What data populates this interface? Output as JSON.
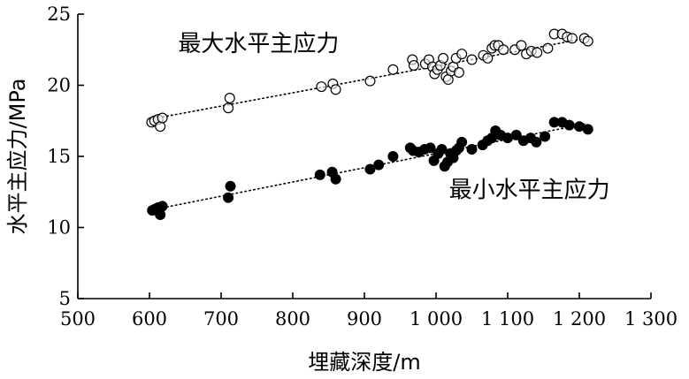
{
  "chart_data": {
    "type": "scatter",
    "title": "",
    "xlabel": "埋藏深度/m",
    "ylabel": "水平主应力/MPa",
    "xlim": [
      500,
      1300
    ],
    "ylim": [
      5,
      25
    ],
    "x_ticks": [
      500,
      600,
      700,
      800,
      900,
      1000,
      1100,
      1200,
      1300
    ],
    "x_tick_labels": [
      "500",
      "600",
      "700",
      "800",
      "900",
      "1 000",
      "1 100",
      "1 200",
      "1 300"
    ],
    "y_ticks": [
      5,
      10,
      15,
      20,
      25
    ],
    "y_tick_labels": [
      "5",
      "10",
      "15",
      "20",
      "25"
    ],
    "grid": false,
    "series": [
      {
        "name": "最大水平主应力",
        "marker": "open-circle",
        "color": "#000000",
        "trend": {
          "x": [
            600,
            1210
          ],
          "y": [
            17.6,
            23.3
          ]
        },
        "points": [
          [
            603,
            17.4
          ],
          [
            607,
            17.5
          ],
          [
            612,
            17.6
          ],
          [
            615,
            17.1
          ],
          [
            618,
            17.7
          ],
          [
            710,
            18.4
          ],
          [
            712,
            19.1
          ],
          [
            840,
            19.9
          ],
          [
            856,
            20.1
          ],
          [
            860,
            19.7
          ],
          [
            908,
            20.3
          ],
          [
            940,
            21.1
          ],
          [
            967,
            21.8
          ],
          [
            969,
            21.4
          ],
          [
            985,
            21.5
          ],
          [
            990,
            21.8
          ],
          [
            995,
            21.3
          ],
          [
            998,
            20.8
          ],
          [
            1002,
            21.1
          ],
          [
            1006,
            21.4
          ],
          [
            1010,
            21.9
          ],
          [
            1014,
            20.6
          ],
          [
            1017,
            20.4
          ],
          [
            1021,
            21.0
          ],
          [
            1024,
            21.3
          ],
          [
            1028,
            21.9
          ],
          [
            1032,
            20.9
          ],
          [
            1036,
            22.2
          ],
          [
            1050,
            21.8
          ],
          [
            1066,
            22.1
          ],
          [
            1072,
            21.9
          ],
          [
            1078,
            22.6
          ],
          [
            1082,
            22.8
          ],
          [
            1087,
            22.8
          ],
          [
            1094,
            22.5
          ],
          [
            1110,
            22.5
          ],
          [
            1119,
            22.8
          ],
          [
            1126,
            22.2
          ],
          [
            1133,
            22.4
          ],
          [
            1141,
            22.3
          ],
          [
            1156,
            22.6
          ],
          [
            1165,
            23.6
          ],
          [
            1176,
            23.6
          ],
          [
            1183,
            23.4
          ],
          [
            1190,
            23.3
          ],
          [
            1207,
            23.3
          ],
          [
            1212,
            23.1
          ]
        ]
      },
      {
        "name": "最小水平主应力",
        "marker": "filled-circle",
        "color": "#000000",
        "trend": {
          "x": [
            600,
            1210
          ],
          "y": [
            11.2,
            17.3
          ]
        },
        "points": [
          [
            604,
            11.2
          ],
          [
            608,
            11.3
          ],
          [
            612,
            11.4
          ],
          [
            615,
            10.9
          ],
          [
            618,
            11.5
          ],
          [
            710,
            12.1
          ],
          [
            713,
            12.9
          ],
          [
            838,
            13.7
          ],
          [
            855,
            13.9
          ],
          [
            860,
            13.4
          ],
          [
            908,
            14.1
          ],
          [
            920,
            14.4
          ],
          [
            940,
            15.0
          ],
          [
            964,
            15.6
          ],
          [
            968,
            15.4
          ],
          [
            976,
            15.3
          ],
          [
            984,
            15.5
          ],
          [
            992,
            15.6
          ],
          [
            997,
            14.7
          ],
          [
            1003,
            15.2
          ],
          [
            1008,
            15.5
          ],
          [
            1012,
            14.3
          ],
          [
            1016,
            14.6
          ],
          [
            1020,
            15.2
          ],
          [
            1024,
            14.9
          ],
          [
            1028,
            15.4
          ],
          [
            1032,
            15.6
          ],
          [
            1036,
            16.0
          ],
          [
            1050,
            15.5
          ],
          [
            1065,
            15.8
          ],
          [
            1072,
            16.1
          ],
          [
            1078,
            16.3
          ],
          [
            1083,
            16.8
          ],
          [
            1090,
            16.5
          ],
          [
            1100,
            16.3
          ],
          [
            1112,
            16.5
          ],
          [
            1122,
            16.1
          ],
          [
            1132,
            16.3
          ],
          [
            1140,
            16.0
          ],
          [
            1152,
            16.4
          ],
          [
            1165,
            17.4
          ],
          [
            1176,
            17.4
          ],
          [
            1186,
            17.2
          ],
          [
            1200,
            17.1
          ],
          [
            1212,
            16.9
          ]
        ]
      }
    ],
    "annotations": [
      {
        "text": "最大水平主应力",
        "x": 640,
        "y": 22.4
      },
      {
        "text": "最小水平主应力",
        "x": 1018,
        "y": 12.1
      }
    ]
  }
}
